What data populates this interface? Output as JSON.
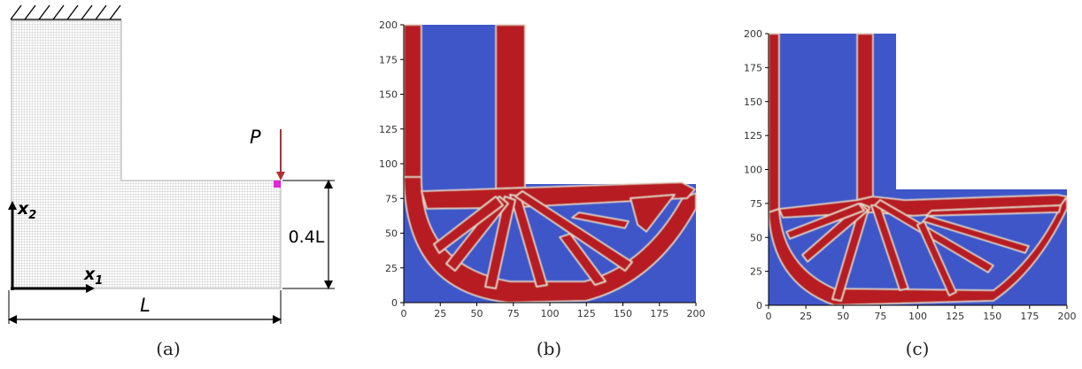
{
  "panel_a": {
    "caption": "(a)",
    "load_label": "P",
    "height_label": "0.4L",
    "length_label": "L",
    "axis_x1": "x",
    "axis_x1_sub": "1",
    "axis_x2": "x",
    "axis_x2_sub": "2",
    "colors": {
      "mesh": "#bdbdbd",
      "load": "#b03030",
      "node": "#e000e0"
    }
  },
  "panel_b": {
    "caption": "(b)",
    "x_ticks": [
      "0",
      "25",
      "50",
      "75",
      "100",
      "125",
      "150",
      "175",
      "200"
    ],
    "y_ticks": [
      "0",
      "25",
      "50",
      "75",
      "100",
      "125",
      "150",
      "175",
      "200"
    ],
    "colors": {
      "void": "#3e56c8",
      "solid": "#b71c24",
      "edge": "#e8e0d0"
    }
  },
  "panel_c": {
    "caption": "(c)",
    "x_ticks": [
      "0",
      "25",
      "50",
      "75",
      "100",
      "125",
      "150",
      "175",
      "200"
    ],
    "y_ticks": [
      "0",
      "25",
      "50",
      "75",
      "100",
      "125",
      "150",
      "175",
      "200"
    ],
    "colors": {
      "void": "#3e56c8",
      "solid": "#b71c24",
      "edge": "#e8e0d0"
    }
  }
}
